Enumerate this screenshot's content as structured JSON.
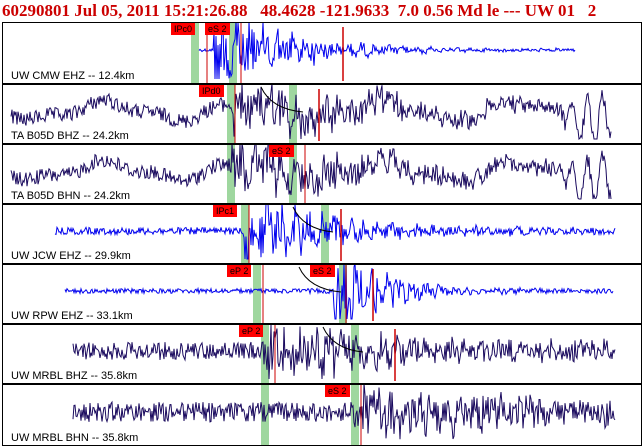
{
  "header": {
    "text": "60290801 Jul 05, 2011 15:21:26.88   48.4628 -121.9633  7.0 0.56 Md le --- UW 01   2"
  },
  "traces": [
    {
      "label": "UW CMW EHZ -- 12.4km",
      "color": "#0000ee",
      "picks": [
        "IPc0",
        "eS 2"
      ]
    },
    {
      "label": "TA B05D BHZ -- 24.2km",
      "color": "#1a0a5e",
      "picks": [
        "IPd0"
      ]
    },
    {
      "label": "TA B05D BHN -- 24.2km",
      "color": "#1a0a5e",
      "picks": [
        "eS 2"
      ]
    },
    {
      "label": "UW JCW EHZ -- 29.9km",
      "color": "#0000ee",
      "picks": [
        "IPc1"
      ]
    },
    {
      "label": "UW RPW EHZ -- 33.1km",
      "color": "#0000ee",
      "picks": [
        "eP 2",
        "eS 2"
      ]
    },
    {
      "label": "UW MRBL BHZ -- 35.8km",
      "color": "#1a0a5e",
      "picks": [
        "eP 2"
      ]
    },
    {
      "label": "UW MRBL BHN -- 35.8km",
      "color": "#1a0a5e",
      "picks": [
        "eS 2"
      ]
    }
  ],
  "colors": {
    "pick_box": "#ff0000",
    "pick_line": "#cc0000",
    "window_band": "#9fd79f",
    "header_text": "#cc0000"
  }
}
